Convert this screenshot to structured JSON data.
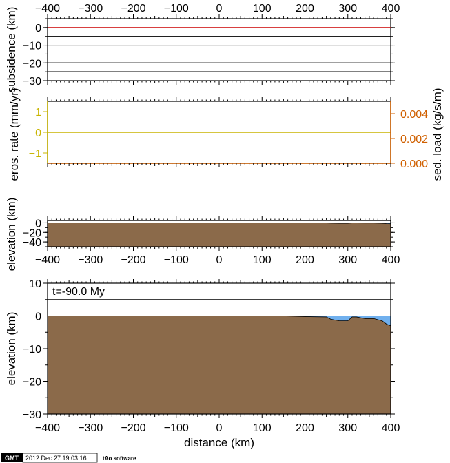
{
  "chart_data": [
    {
      "id": "subsidence",
      "type": "line",
      "xlim": [
        -400,
        400
      ],
      "ylim": [
        -30,
        5
      ],
      "ylabel": "subsidence (km)",
      "x_ticks": [
        -400,
        -300,
        -200,
        -100,
        0,
        100,
        200,
        300,
        400
      ],
      "y_ticks": [
        0,
        -10,
        -20,
        -30
      ],
      "horizontal_lines": [
        {
          "y": 0,
          "color": "#cc0000"
        },
        {
          "y": -5,
          "color": "#000000"
        },
        {
          "y": -10,
          "color": "#000000"
        },
        {
          "y": -15,
          "color": "#888888"
        },
        {
          "y": -20,
          "color": "#000000"
        },
        {
          "y": -25,
          "color": "#000000"
        }
      ],
      "grid": false
    },
    {
      "id": "erosion",
      "type": "line",
      "xlim": [
        -400,
        400
      ],
      "ylim_left": [
        -1.5,
        1.5
      ],
      "ylim_right": [
        0,
        0.005
      ],
      "ylabel_left": "eros. rate (mm/yr)",
      "ylabel_right": "sed. load (kg/s/m)",
      "y_ticks_left": [
        1,
        0,
        -1
      ],
      "y_ticks_right": [
        "0.004",
        "0.002",
        "0.000"
      ],
      "series": [
        {
          "name": "eros. rate",
          "axis": "left",
          "x": [
            -400,
            400
          ],
          "y": [
            0,
            0
          ],
          "color": "#c8b400"
        },
        {
          "name": "sed. load",
          "axis": "right",
          "x": [
            -400,
            400
          ],
          "y": [
            0,
            0
          ],
          "color": "#d06000"
        }
      ],
      "left_axis_color": "#c8b400",
      "right_axis_color": "#d06000"
    },
    {
      "id": "elevation_small",
      "type": "area",
      "xlim": [
        -400,
        400
      ],
      "ylim": [
        -50,
        5
      ],
      "ylabel": "elevation (km)",
      "y_ticks": [
        0,
        -20,
        -40
      ],
      "x_ticks": [
        -400,
        -300,
        -200,
        -100,
        0,
        100,
        200,
        300,
        400
      ]
    },
    {
      "id": "elevation_main",
      "type": "area",
      "xlim": [
        -400,
        400
      ],
      "ylim": [
        -30,
        10
      ],
      "xlabel": "distance (km)",
      "ylabel": "elevation (km)",
      "y_ticks": [
        10,
        0,
        -10,
        -20,
        -30
      ],
      "x_ticks": [
        -400,
        -300,
        -200,
        -100,
        0,
        100,
        200,
        300,
        400
      ],
      "annotation": "t=-90.0 My",
      "reference_line": 5,
      "sediment_color": "#8b6a4a",
      "water_color": "#70b0ee",
      "topography": {
        "x": [
          -400,
          -200,
          -100,
          -50,
          0,
          50,
          100,
          150,
          200,
          250,
          260,
          280,
          300,
          310,
          320,
          340,
          360,
          380,
          390,
          400
        ],
        "y": [
          0,
          0,
          0,
          0,
          0,
          0,
          0,
          0,
          -0.2,
          -0.3,
          -1,
          -1.5,
          -1.5,
          -0.3,
          -0.3,
          -0.8,
          -0.8,
          -1.5,
          -2.5,
          -3
        ]
      }
    }
  ],
  "footer": {
    "logo": "GMT",
    "timestamp": "2012 Dec 27 19:03:16",
    "software": "tAo software"
  }
}
